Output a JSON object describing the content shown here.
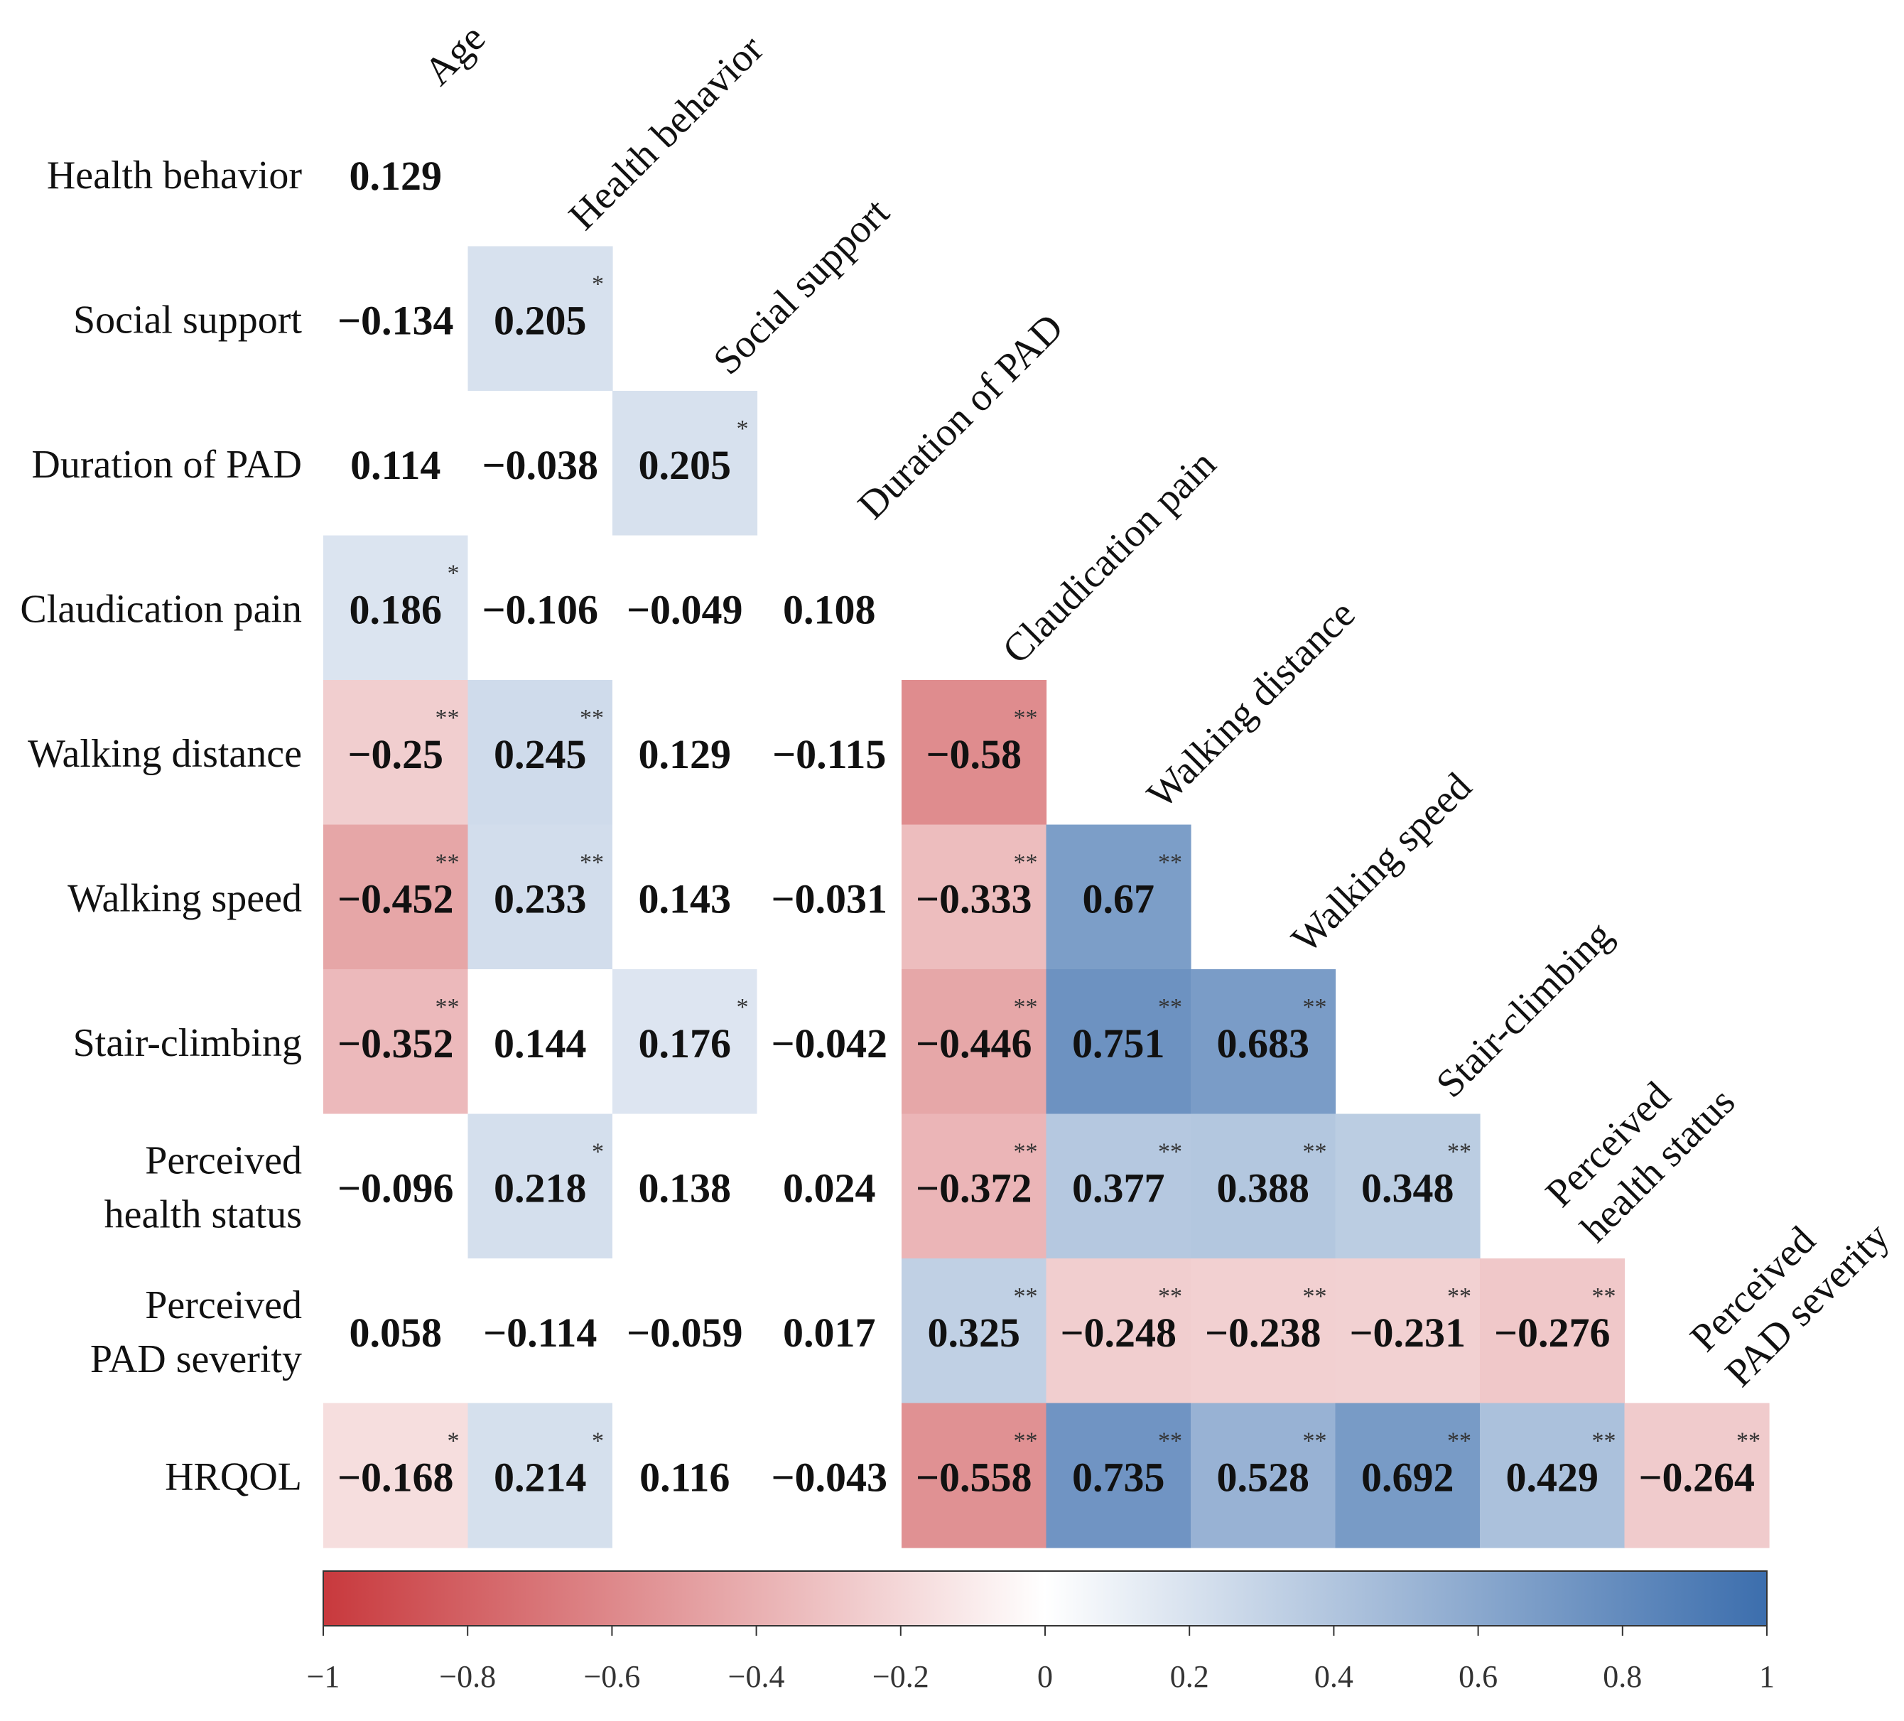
{
  "chart_data": {
    "type": "heatmap",
    "title": "",
    "variables": [
      "Age",
      "Health behavior",
      "Social support",
      "Duration of PAD",
      "Claudication pain",
      "Walking distance",
      "Walking speed",
      "Stair-climbing",
      "Perceived health status",
      "Perceived PAD severity",
      "HRQOL"
    ],
    "row_labels": [
      [
        "Health behavior"
      ],
      [
        "Social support"
      ],
      [
        "Duration of PAD"
      ],
      [
        "Claudication pain"
      ],
      [
        "Walking distance"
      ],
      [
        "Walking speed"
      ],
      [
        "Stair-climbing"
      ],
      [
        "Perceived",
        "health status"
      ],
      [
        "Perceived",
        "PAD severity"
      ],
      [
        "HRQOL"
      ]
    ],
    "col_labels": [
      [
        "Age"
      ],
      [
        "Health behavior"
      ],
      [
        "Social support"
      ],
      [
        "Duration of PAD"
      ],
      [
        "Claudication pain"
      ],
      [
        "Walking distance"
      ],
      [
        "Walking speed"
      ],
      [
        "Stair-climbing"
      ],
      [
        "Perceived",
        "health status"
      ],
      [
        "Perceived",
        "PAD severity"
      ]
    ],
    "values": [
      [
        0.129
      ],
      [
        -0.134,
        0.205
      ],
      [
        0.114,
        -0.038,
        0.205
      ],
      [
        0.186,
        -0.106,
        -0.049,
        0.108
      ],
      [
        -0.25,
        0.245,
        0.129,
        -0.115,
        -0.58
      ],
      [
        -0.452,
        0.233,
        0.143,
        -0.031,
        -0.333,
        0.67
      ],
      [
        -0.352,
        0.144,
        0.176,
        -0.042,
        -0.446,
        0.751,
        0.683
      ],
      [
        -0.096,
        0.218,
        0.138,
        0.024,
        -0.372,
        0.377,
        0.388,
        0.348
      ],
      [
        0.058,
        -0.114,
        -0.059,
        0.017,
        0.325,
        -0.248,
        -0.238,
        -0.231,
        -0.276
      ],
      [
        -0.168,
        0.214,
        0.116,
        -0.043,
        -0.558,
        0.735,
        0.528,
        0.692,
        0.429,
        -0.264
      ]
    ],
    "value_labels": [
      [
        "0.129"
      ],
      [
        "−0.134",
        "0.205"
      ],
      [
        "0.114",
        "−0.038",
        "0.205"
      ],
      [
        "0.186",
        "−0.106",
        "−0.049",
        "0.108"
      ],
      [
        "−0.25",
        "0.245",
        "0.129",
        "−0.115",
        "−0.58"
      ],
      [
        "−0.452",
        "0.233",
        "0.143",
        "−0.031",
        "−0.333",
        "0.67"
      ],
      [
        "−0.352",
        "0.144",
        "0.176",
        "−0.042",
        "−0.446",
        "0.751",
        "0.683"
      ],
      [
        "−0.096",
        "0.218",
        "0.138",
        "0.024",
        "−0.372",
        "0.377",
        "0.388",
        "0.348"
      ],
      [
        "0.058",
        "−0.114",
        "−0.059",
        "0.017",
        "0.325",
        "−0.248",
        "−0.238",
        "−0.231",
        "−0.276"
      ],
      [
        "−0.168",
        "0.214",
        "0.116",
        "−0.043",
        "−0.558",
        "0.735",
        "0.528",
        "0.692",
        "0.429",
        "−0.264"
      ]
    ],
    "significance": [
      [
        ""
      ],
      [
        "",
        "*"
      ],
      [
        "",
        "",
        "*"
      ],
      [
        "*",
        "",
        "",
        ""
      ],
      [
        "**",
        "**",
        "",
        "",
        "**"
      ],
      [
        "**",
        "**",
        "",
        "",
        "**",
        "**"
      ],
      [
        "**",
        "",
        "*",
        "",
        "**",
        "**",
        "**"
      ],
      [
        "",
        "*",
        "",
        "",
        "**",
        "**",
        "**",
        "**"
      ],
      [
        "",
        "",
        "",
        "",
        "**",
        "**",
        "**",
        "**",
        "**"
      ],
      [
        "*",
        "*",
        "",
        "",
        "**",
        "**",
        "**",
        "**",
        "**",
        "**"
      ]
    ],
    "color_scale": {
      "range": [
        -1,
        1
      ],
      "negative_color": "#c8393d",
      "neutral_color": "#ffffff",
      "positive_color": "#3c6ead",
      "ticks": [
        "−1",
        "−0.8",
        "−0.6",
        "−0.4",
        "−0.2",
        "0",
        "0.2",
        "0.4",
        "0.6",
        "0.8",
        "1"
      ],
      "tick_values": [
        -1,
        -0.8,
        -0.6,
        -0.4,
        -0.2,
        0,
        0.2,
        0.4,
        0.6,
        0.8,
        1
      ],
      "placement": "bottom"
    },
    "fill_rule": "cells colored only when significant (* or **)",
    "grid": false
  }
}
